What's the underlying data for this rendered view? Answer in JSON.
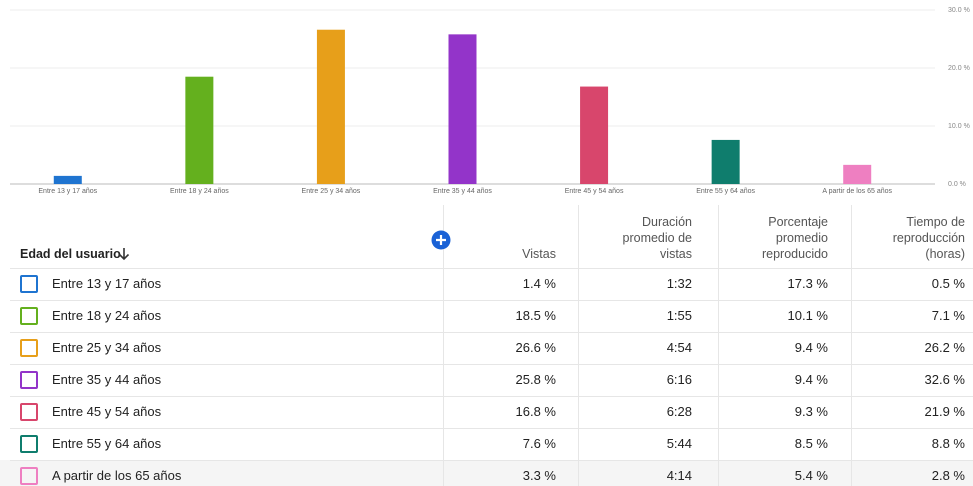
{
  "chart_data": {
    "type": "bar",
    "categories": [
      "Entre 13 y 17 años",
      "Entre 18 y 24 años",
      "Entre 25 y 34 años",
      "Entre 35 y 44 años",
      "Entre 45 y 54 años",
      "Entre 55 y 64 años",
      "A partir de los 65 años"
    ],
    "values": [
      1.4,
      18.5,
      26.6,
      25.8,
      16.8,
      7.6,
      3.3
    ],
    "colors": [
      "#1f74d0",
      "#64b01e",
      "#e79f1a",
      "#9334c9",
      "#d8466c",
      "#0f7d6d",
      "#ee7fc1"
    ],
    "ylim": [
      0,
      30
    ],
    "yticks": [
      {
        "value": 0,
        "label": "0.0 %"
      },
      {
        "value": 10,
        "label": "10.0 %"
      },
      {
        "value": 20,
        "label": "20.0 %"
      },
      {
        "value": 30,
        "label": "30.0 %"
      }
    ],
    "grid": true
  },
  "table": {
    "headers": [
      "Edad del usuario",
      "Vistas",
      "Duración promedio de vistas",
      "Porcentaje promedio reproducido",
      "Tiempo de reproducción (horas)"
    ],
    "rows": [
      [
        "Entre 13 y 17 años",
        "1.4 %",
        "1:32",
        "17.3 %",
        "0.5 %"
      ],
      [
        "Entre 18 y 24 años",
        "18.5 %",
        "1:55",
        "10.1 %",
        "7.1 %"
      ],
      [
        "Entre 25 y 34 años",
        "26.6 %",
        "4:54",
        "9.4 %",
        "26.2 %"
      ],
      [
        "Entre 35 y 44 años",
        "25.8 %",
        "6:16",
        "9.4 %",
        "32.6 %"
      ],
      [
        "Entre 45 y 54 años",
        "16.8 %",
        "6:28",
        "9.3 %",
        "21.9 %"
      ],
      [
        "Entre 55 y 64 años",
        "7.6 %",
        "5:44",
        "8.5 %",
        "8.8 %"
      ],
      [
        "A partir de los 65 años",
        "3.3 %",
        "4:14",
        "5.4 %",
        "2.8 %"
      ]
    ]
  }
}
